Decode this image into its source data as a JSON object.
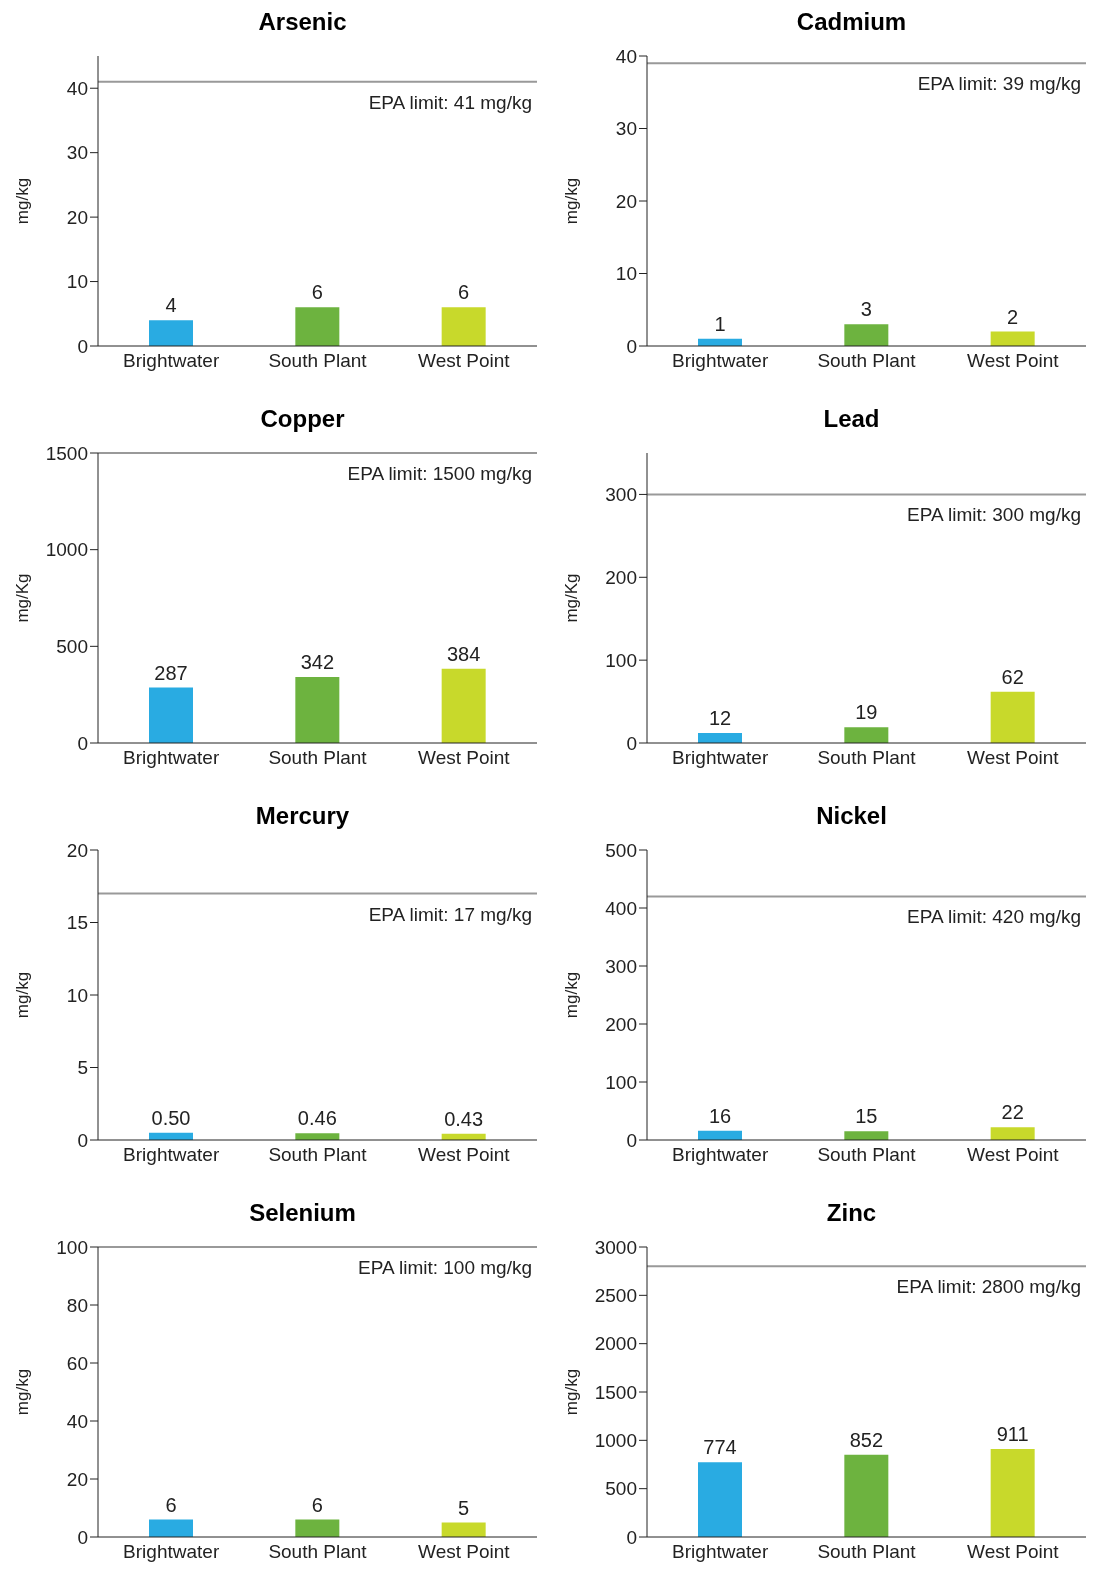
{
  "chart_data": [
    {
      "type": "bar",
      "title": "Arsenic",
      "ylabel": "mg/kg",
      "categories": [
        "Brightwater",
        "South Plant",
        "West Point"
      ],
      "values": [
        4,
        6,
        6
      ],
      "colors": [
        "#29abe2",
        "#6db33f",
        "#c8d92b"
      ],
      "value_labels": [
        "4",
        "6",
        "6"
      ],
      "ylim": [
        0,
        45
      ],
      "yticks": [
        0,
        10,
        20,
        30,
        40
      ],
      "ref_lines": [
        {
          "axis": "y",
          "value": 41,
          "label": "EPA limit: 41 mg/kg",
          "color": "#999999"
        }
      ],
      "grid": false,
      "legend": false
    },
    {
      "type": "bar",
      "title": "Cadmium",
      "ylabel": "mg/kg",
      "categories": [
        "Brightwater",
        "South Plant",
        "West Point"
      ],
      "values": [
        1,
        3,
        2
      ],
      "colors": [
        "#29abe2",
        "#6db33f",
        "#c8d92b"
      ],
      "value_labels": [
        "1",
        "3",
        "2"
      ],
      "ylim": [
        0,
        40
      ],
      "yticks": [
        0,
        10,
        20,
        30,
        40
      ],
      "ref_lines": [
        {
          "axis": "y",
          "value": 39,
          "label": "EPA limit: 39 mg/kg",
          "color": "#999999"
        }
      ],
      "grid": false,
      "legend": false
    },
    {
      "type": "bar",
      "title": "Copper",
      "ylabel": "mg/Kg",
      "categories": [
        "Brightwater",
        "South Plant",
        "West Point"
      ],
      "values": [
        287,
        342,
        384
      ],
      "colors": [
        "#29abe2",
        "#6db33f",
        "#c8d92b"
      ],
      "value_labels": [
        "287",
        "342",
        "384"
      ],
      "ylim": [
        0,
        1500
      ],
      "yticks": [
        0,
        500,
        1000,
        1500
      ],
      "ref_lines": [
        {
          "axis": "y",
          "value": 1500,
          "label": "EPA limit: 1500 mg/kg",
          "color": "#999999"
        }
      ],
      "grid": false,
      "legend": false
    },
    {
      "type": "bar",
      "title": "Lead",
      "ylabel": "mg/Kg",
      "categories": [
        "Brightwater",
        "South Plant",
        "West Point"
      ],
      "values": [
        12,
        19,
        62
      ],
      "colors": [
        "#29abe2",
        "#6db33f",
        "#c8d92b"
      ],
      "value_labels": [
        "12",
        "19",
        "62"
      ],
      "ylim": [
        0,
        350
      ],
      "yticks": [
        0,
        100,
        200,
        300
      ],
      "ref_lines": [
        {
          "axis": "y",
          "value": 300,
          "label": "EPA limit: 300 mg/kg",
          "color": "#999999"
        }
      ],
      "grid": false,
      "legend": false
    },
    {
      "type": "bar",
      "title": "Mercury",
      "ylabel": "mg/kg",
      "categories": [
        "Brightwater",
        "South Plant",
        "West Point"
      ],
      "values": [
        0.5,
        0.46,
        0.43
      ],
      "colors": [
        "#29abe2",
        "#6db33f",
        "#c8d92b"
      ],
      "value_labels": [
        "0.50",
        "0.46",
        "0.43"
      ],
      "ylim": [
        0,
        20
      ],
      "yticks": [
        0,
        5,
        10,
        15,
        20
      ],
      "ref_lines": [
        {
          "axis": "y",
          "value": 17,
          "label": "EPA limit: 17 mg/kg",
          "color": "#999999"
        }
      ],
      "grid": false,
      "legend": false
    },
    {
      "type": "bar",
      "title": "Nickel",
      "ylabel": "mg/kg",
      "categories": [
        "Brightwater",
        "South Plant",
        "West Point"
      ],
      "values": [
        16,
        15,
        22
      ],
      "colors": [
        "#29abe2",
        "#6db33f",
        "#c8d92b"
      ],
      "value_labels": [
        "16",
        "15",
        "22"
      ],
      "ylim": [
        0,
        500
      ],
      "yticks": [
        0,
        100,
        200,
        300,
        400,
        500
      ],
      "ref_lines": [
        {
          "axis": "y",
          "value": 420,
          "label": "EPA limit: 420 mg/kg",
          "color": "#999999"
        }
      ],
      "grid": false,
      "legend": false
    },
    {
      "type": "bar",
      "title": "Selenium",
      "ylabel": "mg/kg",
      "categories": [
        "Brightwater",
        "South Plant",
        "West Point"
      ],
      "values": [
        6,
        6,
        5
      ],
      "colors": [
        "#29abe2",
        "#6db33f",
        "#c8d92b"
      ],
      "value_labels": [
        "6",
        "6",
        "5"
      ],
      "ylim": [
        0,
        100
      ],
      "yticks": [
        0,
        20,
        40,
        60,
        80,
        100
      ],
      "ref_lines": [
        {
          "axis": "y",
          "value": 100,
          "label": "EPA limit: 100 mg/kg",
          "color": "#999999"
        }
      ],
      "grid": false,
      "legend": false
    },
    {
      "type": "bar",
      "title": "Zinc",
      "ylabel": "mg/kg",
      "categories": [
        "Brightwater",
        "South Plant",
        "West Point"
      ],
      "values": [
        774,
        852,
        911
      ],
      "colors": [
        "#29abe2",
        "#6db33f",
        "#c8d92b"
      ],
      "value_labels": [
        "774",
        "852",
        "911"
      ],
      "ylim": [
        0,
        3000
      ],
      "yticks": [
        0,
        500,
        1000,
        1500,
        2000,
        2500,
        3000
      ],
      "ref_lines": [
        {
          "axis": "y",
          "value": 2800,
          "label": "EPA limit: 2800 mg/kg",
          "color": "#999999"
        }
      ],
      "grid": false,
      "legend": false
    }
  ]
}
